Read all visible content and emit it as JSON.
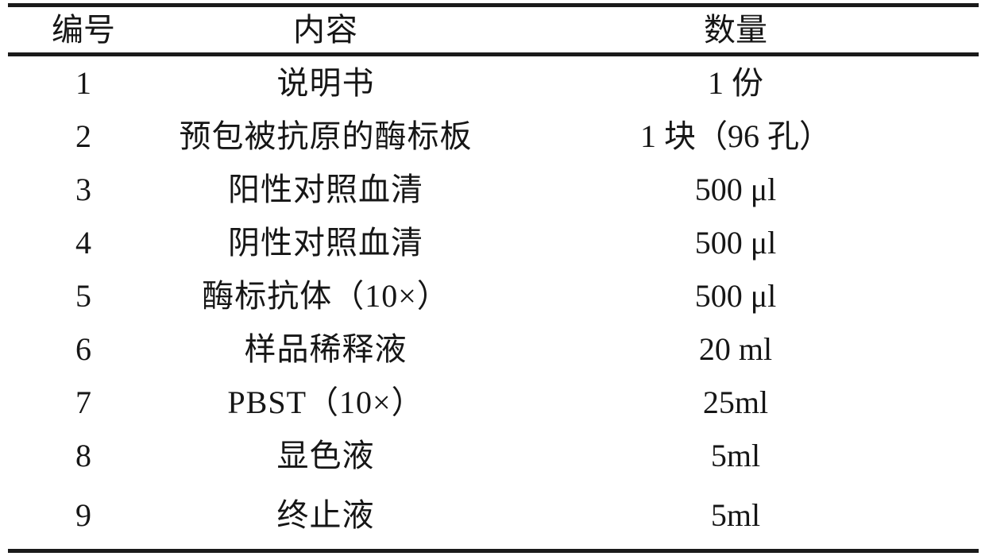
{
  "table": {
    "headers": {
      "number": "编号",
      "content": "内容",
      "quantity": "数量"
    },
    "rows": [
      {
        "no": "1",
        "content": "说明书",
        "qty": "1 份"
      },
      {
        "no": "2",
        "content": "预包被抗原的酶标板",
        "qty": "1 块（96 孔）"
      },
      {
        "no": "3",
        "content": "阳性对照血清",
        "qty": "500 μl"
      },
      {
        "no": "4",
        "content": "阴性对照血清",
        "qty": "500 μl"
      },
      {
        "no": "5",
        "content": "酶标抗体（10×）",
        "qty": "500 μl"
      },
      {
        "no": "6",
        "content": "样品稀释液",
        "qty": "20 ml"
      },
      {
        "no": "7",
        "content": "PBST（10×）",
        "qty": "25ml"
      },
      {
        "no": "8",
        "content": "显色液",
        "qty": "5ml"
      },
      {
        "no": "9",
        "content": "终止液",
        "qty": "5ml"
      }
    ]
  }
}
